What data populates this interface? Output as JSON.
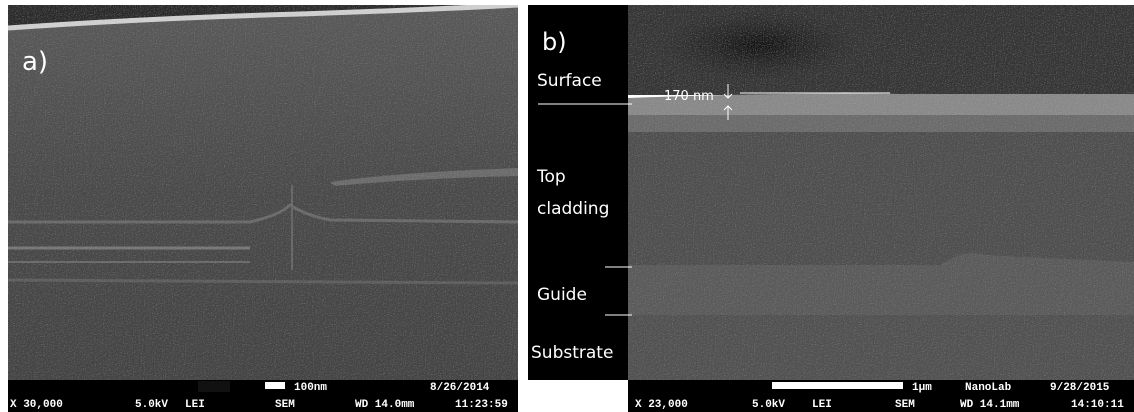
{
  "panel_a": {
    "label": "a)",
    "info_bar": {
      "magnification": "X 30,000",
      "voltage": "5.0kV",
      "detector": "LEI",
      "mode": "SEM",
      "scale": "100nm",
      "date": "8/26/2014",
      "working_distance": "WD 14.0mm",
      "time": "11:23:59"
    }
  },
  "panel_b": {
    "label": "b)",
    "layers": {
      "surface": "Surface",
      "top_cladding": [
        "Top",
        "cladding"
      ],
      "guide": "Guide",
      "substrate": "Substrate"
    },
    "thickness_annotation": "170 nm",
    "info_bar": {
      "magnification": "X 23,000",
      "voltage": "5.0kV",
      "detector": "LEI",
      "mode": "SEM",
      "scale": "1μm",
      "lab": "NanoLab",
      "date": "9/28/2015",
      "working_distance": "WD 14.1mm",
      "time": "14:10:11"
    }
  }
}
